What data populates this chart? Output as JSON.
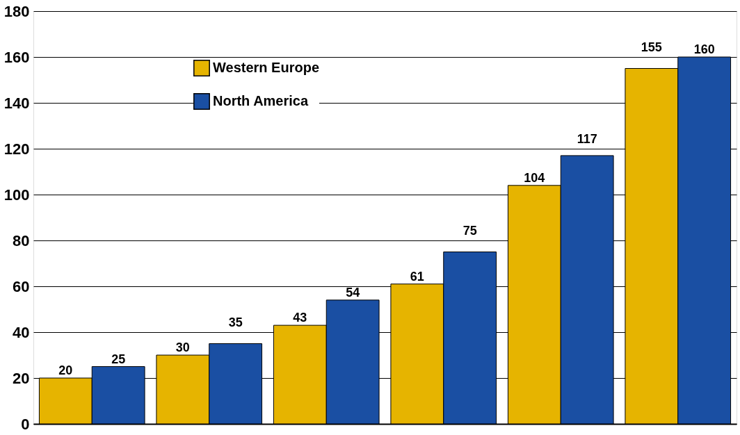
{
  "chart_data": {
    "type": "bar",
    "categories": [
      null,
      null,
      null,
      null,
      null,
      null
    ],
    "series": [
      {
        "name": "Western Europe",
        "color": "#e6b400",
        "values": [
          20,
          30,
          43,
          61,
          104,
          155
        ]
      },
      {
        "name": "North America",
        "color": "#1a4fa3",
        "values": [
          25,
          35,
          54,
          75,
          117,
          160
        ]
      }
    ],
    "ylim": [
      0,
      180
    ],
    "yticks": [
      0,
      20,
      40,
      60,
      80,
      100,
      120,
      140,
      160,
      180
    ],
    "grid": "y",
    "legend": "top left",
    "data_labels": true,
    "tick_labels": "y"
  }
}
